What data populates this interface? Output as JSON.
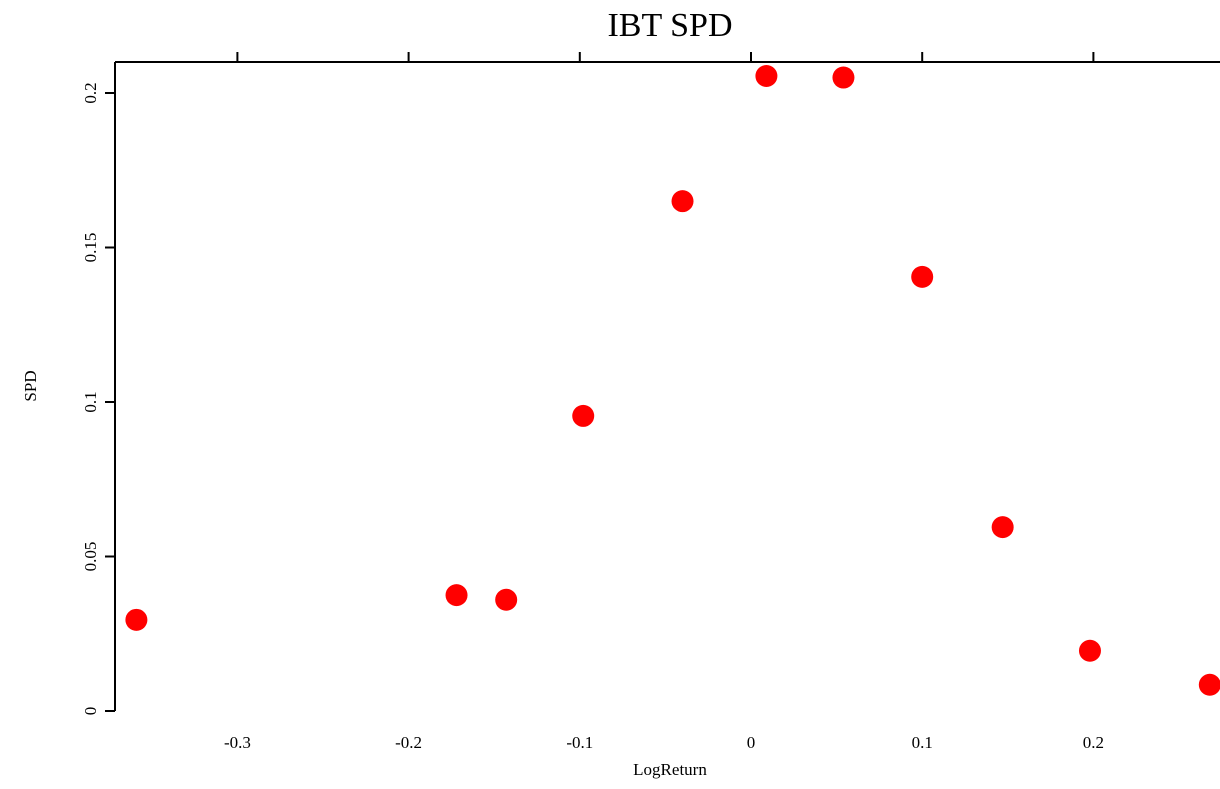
{
  "chart_data": {
    "type": "scatter",
    "title": "IBT SPD",
    "xlabel": "LogReturn",
    "ylabel": "SPD",
    "xlim": [
      -0.37,
      0.27
    ],
    "ylim": [
      0,
      0.21
    ],
    "x_ticks": [
      -0.3,
      -0.2,
      -0.1,
      0,
      0.1,
      0.2
    ],
    "x_tick_labels": [
      "-0.3",
      "-0.2",
      "-0.1",
      "0",
      "0.1",
      "0.2"
    ],
    "y_ticks": [
      0,
      0.05,
      0.1,
      0.15,
      0.2
    ],
    "y_tick_labels": [
      "0",
      "0.05",
      "0.1",
      "0.15",
      "0.2"
    ],
    "grid": false,
    "point_color": "#ff0000",
    "points": [
      {
        "x": -0.359,
        "y": 0.0295
      },
      {
        "x": -0.172,
        "y": 0.0375
      },
      {
        "x": -0.143,
        "y": 0.036
      },
      {
        "x": -0.098,
        "y": 0.0955
      },
      {
        "x": -0.04,
        "y": 0.165
      },
      {
        "x": 0.009,
        "y": 0.2055
      },
      {
        "x": 0.054,
        "y": 0.205
      },
      {
        "x": 0.1,
        "y": 0.1405
      },
      {
        "x": 0.147,
        "y": 0.0595
      },
      {
        "x": 0.198,
        "y": 0.0195
      },
      {
        "x": 0.268,
        "y": 0.0085
      }
    ]
  }
}
